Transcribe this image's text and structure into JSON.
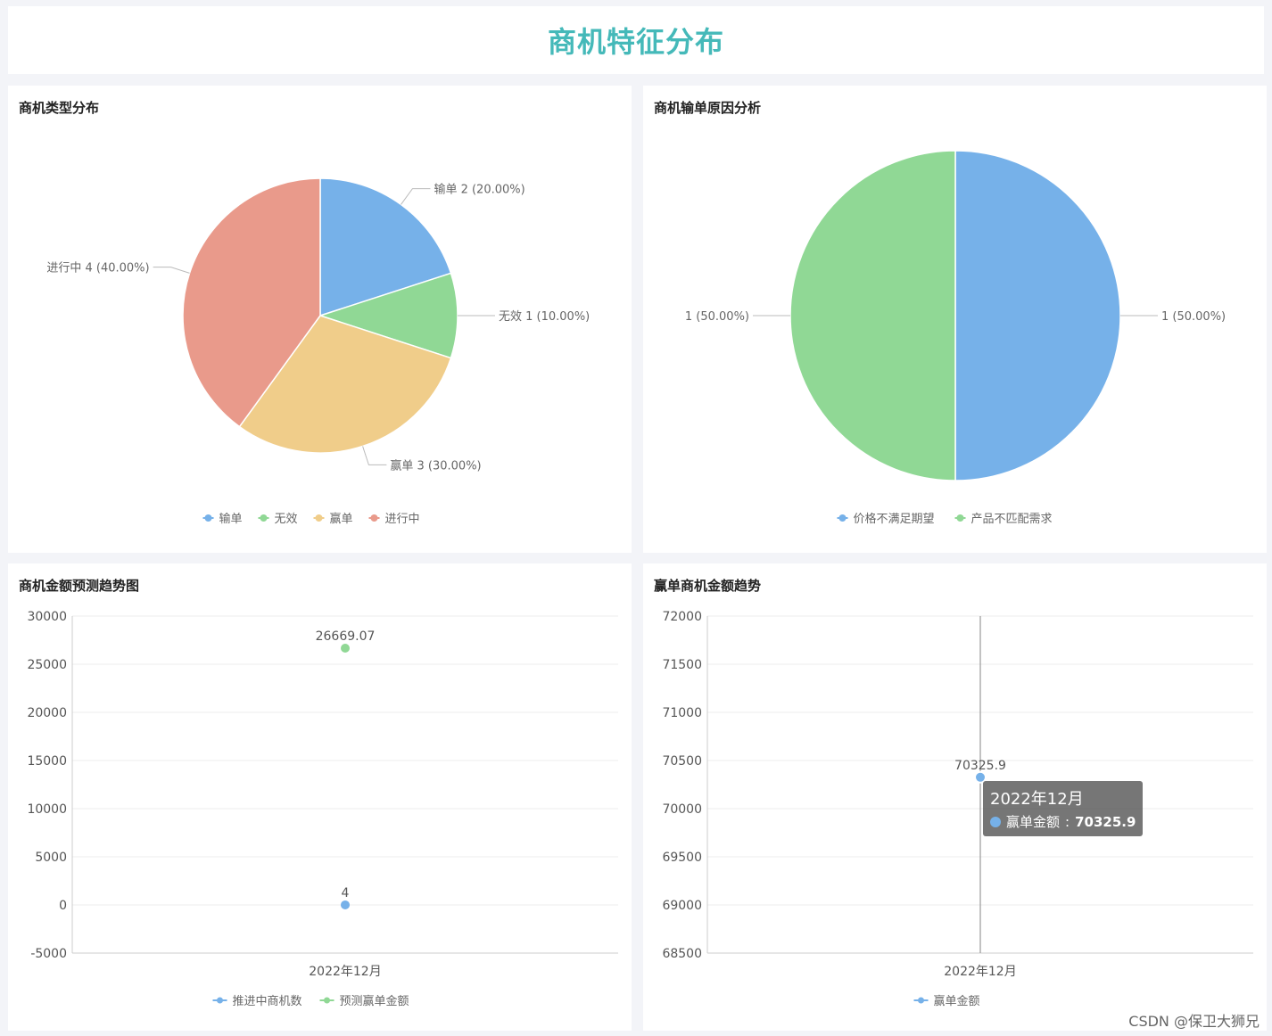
{
  "header": {
    "title": "商机特征分布"
  },
  "panels": {
    "type_dist": {
      "title": "商机类型分布"
    },
    "loss_reason": {
      "title": "商机输单原因分析"
    },
    "forecast": {
      "title": "商机金额预测趋势图"
    },
    "win_trend": {
      "title": "赢单商机金额趋势"
    }
  },
  "tooltip": {
    "date": "2022年12月",
    "series": "赢单金额",
    "value": "70325.9"
  },
  "watermark": "CSDN @保卫大狮兄",
  "chart_data": [
    {
      "type": "pie",
      "title": "商机类型分布",
      "slices": [
        {
          "name": "输单",
          "value": 2,
          "label": "输单 2 (20.00%)",
          "color": "#76b1e9"
        },
        {
          "name": "无效",
          "value": 1,
          "label": "无效 1 (10.00%)",
          "color": "#90d895"
        },
        {
          "name": "赢单",
          "value": 3,
          "label": "赢单 3 (30.00%)",
          "color": "#f0cd8a"
        },
        {
          "name": "进行中",
          "value": 4,
          "label": "进行中 4 (40.00%)",
          "color": "#e99a8b"
        }
      ],
      "legend": [
        "输单",
        "无效",
        "赢单",
        "进行中"
      ],
      "legend_position": "bottom"
    },
    {
      "type": "pie",
      "title": "商机输单原因分析",
      "slices": [
        {
          "name": "价格不满足期望",
          "value": 1,
          "label": "1 (50.00%)",
          "color": "#76b1e9"
        },
        {
          "name": "产品不匹配需求",
          "value": 1,
          "label": "1 (50.00%)",
          "color": "#90d895"
        }
      ],
      "legend": [
        "价格不满足期望",
        "产品不匹配需求"
      ],
      "legend_position": "bottom"
    },
    {
      "type": "line",
      "title": "商机金额预测趋势图",
      "x": [
        "2022年12月"
      ],
      "series": [
        {
          "name": "推进中商机数",
          "values": [
            4
          ],
          "labels": [
            "4"
          ],
          "color": "#76b1e9"
        },
        {
          "name": "预测赢单金额",
          "values": [
            26669.07
          ],
          "labels": [
            "26669.07"
          ],
          "color": "#90d895"
        }
      ],
      "ylim": [
        -5000,
        30000
      ],
      "yticks": [
        "30000",
        "25000",
        "20000",
        "15000",
        "10000",
        "5000",
        "0",
        "-5000"
      ],
      "grid": true,
      "legend_position": "bottom"
    },
    {
      "type": "line",
      "title": "赢单商机金额趋势",
      "x": [
        "2022年12月"
      ],
      "series": [
        {
          "name": "赢单金额",
          "values": [
            70325.9
          ],
          "labels": [
            "70325.9"
          ],
          "color": "#76b1e9"
        }
      ],
      "ylim": [
        68500,
        72000
      ],
      "yticks": [
        "72000",
        "71500",
        "71000",
        "70500",
        "70000",
        "69500",
        "69000",
        "68500"
      ],
      "grid": true,
      "legend_position": "bottom"
    }
  ]
}
